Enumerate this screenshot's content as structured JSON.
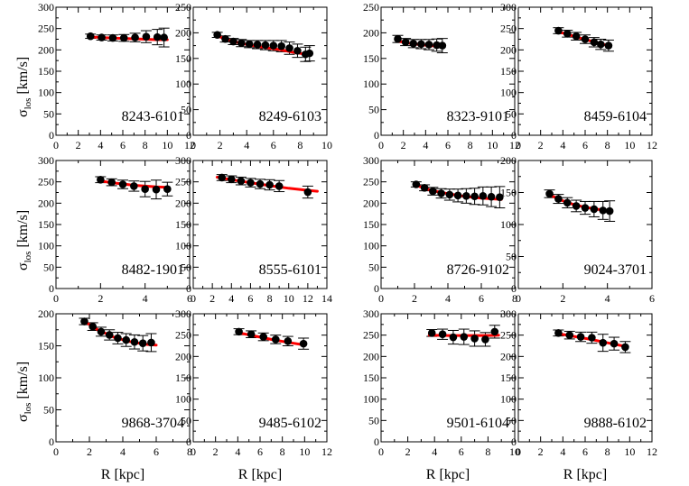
{
  "figure": {
    "ylabel_main": "σ",
    "ylabel_sub": "los",
    "ylabel_unit": " [km/s]",
    "xlabel": "R [kpc]",
    "point_color": "#000000",
    "model_color": "#ff0000",
    "frame_color": "#000000"
  },
  "chart_data": [
    {
      "type": "scatter",
      "id": "8243-6101",
      "xlim": [
        0,
        12
      ],
      "xticks": [
        0,
        2,
        4,
        6,
        8,
        10,
        12
      ],
      "ylim": [
        0,
        300
      ],
      "yticks": [
        0,
        50,
        100,
        150,
        200,
        250,
        300
      ],
      "points": [
        {
          "x": 3.1,
          "y": 232,
          "err": 5
        },
        {
          "x": 4.1,
          "y": 229,
          "err": 6
        },
        {
          "x": 5.1,
          "y": 228,
          "err": 7
        },
        {
          "x": 6.1,
          "y": 228,
          "err": 8
        },
        {
          "x": 7.1,
          "y": 229,
          "err": 10
        },
        {
          "x": 8.1,
          "y": 231,
          "err": 14
        },
        {
          "x": 9.1,
          "y": 230,
          "err": 18
        },
        {
          "x": 9.7,
          "y": 229,
          "err": 22
        }
      ],
      "model": [
        [
          3,
          231
        ],
        [
          4,
          229
        ],
        [
          5,
          228
        ],
        [
          6,
          227
        ],
        [
          7,
          226
        ],
        [
          8,
          225
        ],
        [
          9,
          224
        ],
        [
          10,
          224
        ]
      ]
    },
    {
      "type": "scatter",
      "id": "8249-6103",
      "xlim": [
        0,
        10
      ],
      "xticks": [
        0,
        2,
        4,
        6,
        8,
        10
      ],
      "ylim": [
        0,
        250
      ],
      "yticks": [
        0,
        50,
        100,
        150,
        200,
        250
      ],
      "points": [
        {
          "x": 1.8,
          "y": 196,
          "err": 5
        },
        {
          "x": 2.4,
          "y": 188,
          "err": 6
        },
        {
          "x": 3.0,
          "y": 183,
          "err": 6
        },
        {
          "x": 3.6,
          "y": 180,
          "err": 7
        },
        {
          "x": 4.2,
          "y": 178,
          "err": 7
        },
        {
          "x": 4.8,
          "y": 177,
          "err": 8
        },
        {
          "x": 5.4,
          "y": 176,
          "err": 9
        },
        {
          "x": 6.0,
          "y": 175,
          "err": 10
        },
        {
          "x": 6.6,
          "y": 174,
          "err": 11
        },
        {
          "x": 7.2,
          "y": 170,
          "err": 12
        },
        {
          "x": 7.8,
          "y": 165,
          "err": 13
        },
        {
          "x": 8.4,
          "y": 158,
          "err": 14
        },
        {
          "x": 8.7,
          "y": 160,
          "err": 15
        }
      ],
      "model": [
        [
          1.7,
          195
        ],
        [
          2.5,
          187
        ],
        [
          3.5,
          180
        ],
        [
          4.5,
          175
        ],
        [
          5.5,
          171
        ],
        [
          6.5,
          167
        ],
        [
          7.5,
          162
        ],
        [
          8.5,
          158
        ]
      ]
    },
    {
      "type": "scatter",
      "id": "8323-9101",
      "xlim": [
        0,
        12
      ],
      "xticks": [
        0,
        2,
        4,
        6,
        8,
        10,
        12
      ],
      "ylim": [
        0,
        250
      ],
      "yticks": [
        0,
        50,
        100,
        150,
        200,
        250
      ],
      "points": [
        {
          "x": 1.5,
          "y": 188,
          "err": 7
        },
        {
          "x": 2.2,
          "y": 182,
          "err": 7
        },
        {
          "x": 2.9,
          "y": 179,
          "err": 8
        },
        {
          "x": 3.6,
          "y": 178,
          "err": 9
        },
        {
          "x": 4.3,
          "y": 177,
          "err": 10
        },
        {
          "x": 5.0,
          "y": 176,
          "err": 12
        },
        {
          "x": 5.5,
          "y": 175,
          "err": 14
        }
      ],
      "model": [
        [
          1.5,
          184
        ],
        [
          2.5,
          180
        ],
        [
          3.5,
          177
        ],
        [
          4.5,
          175
        ],
        [
          5.5,
          173
        ]
      ]
    },
    {
      "type": "scatter",
      "id": "8459-6104",
      "xlim": [
        0,
        12
      ],
      "xticks": [
        0,
        2,
        4,
        6,
        8,
        10,
        12
      ],
      "ylim": [
        0,
        300
      ],
      "yticks": [
        0,
        50,
        100,
        150,
        200,
        250,
        300
      ],
      "points": [
        {
          "x": 3.6,
          "y": 245,
          "err": 7
        },
        {
          "x": 4.4,
          "y": 238,
          "err": 8
        },
        {
          "x": 5.2,
          "y": 232,
          "err": 9
        },
        {
          "x": 6.0,
          "y": 225,
          "err": 10
        },
        {
          "x": 6.8,
          "y": 218,
          "err": 11
        },
        {
          "x": 7.4,
          "y": 213,
          "err": 12
        },
        {
          "x": 8.1,
          "y": 210,
          "err": 13
        }
      ],
      "model": [
        [
          3.5,
          243
        ],
        [
          4.5,
          236
        ],
        [
          5.5,
          228
        ],
        [
          6.5,
          221
        ],
        [
          7.5,
          214
        ],
        [
          8.2,
          209
        ]
      ]
    },
    {
      "type": "scatter",
      "id": "8482-1901",
      "xlim": [
        0,
        6
      ],
      "xticks": [
        0,
        2,
        4,
        6
      ],
      "ylim": [
        0,
        300
      ],
      "yticks": [
        0,
        50,
        100,
        150,
        200,
        250,
        300
      ],
      "points": [
        {
          "x": 2.0,
          "y": 255,
          "err": 7
        },
        {
          "x": 2.5,
          "y": 249,
          "err": 8
        },
        {
          "x": 3.0,
          "y": 244,
          "err": 10
        },
        {
          "x": 3.5,
          "y": 240,
          "err": 12
        },
        {
          "x": 4.0,
          "y": 233,
          "err": 18
        },
        {
          "x": 4.5,
          "y": 232,
          "err": 22
        },
        {
          "x": 5.0,
          "y": 233,
          "err": 16
        }
      ],
      "model": [
        [
          2.0,
          252
        ],
        [
          2.5,
          248
        ],
        [
          3.0,
          245
        ],
        [
          3.5,
          242
        ],
        [
          4.0,
          240
        ],
        [
          4.5,
          238
        ],
        [
          5.0,
          237
        ]
      ]
    },
    {
      "type": "scatter",
      "id": "8555-6101",
      "xlim": [
        0,
        14
      ],
      "xticks": [
        0,
        2,
        4,
        6,
        8,
        10,
        12,
        14
      ],
      "ylim": [
        0,
        300
      ],
      "yticks": [
        0,
        50,
        100,
        150,
        200,
        250,
        300
      ],
      "points": [
        {
          "x": 3.0,
          "y": 260,
          "err": 7
        },
        {
          "x": 4.0,
          "y": 256,
          "err": 8
        },
        {
          "x": 5.0,
          "y": 252,
          "err": 9
        },
        {
          "x": 6.0,
          "y": 248,
          "err": 10
        },
        {
          "x": 7.0,
          "y": 245,
          "err": 11
        },
        {
          "x": 8.0,
          "y": 243,
          "err": 12
        },
        {
          "x": 9.0,
          "y": 240,
          "err": 13
        },
        {
          "x": 12.0,
          "y": 226,
          "err": 14
        }
      ],
      "model": [
        [
          2.5,
          261
        ],
        [
          4,
          255
        ],
        [
          6,
          248
        ],
        [
          8,
          241
        ],
        [
          10,
          235
        ],
        [
          12,
          230
        ],
        [
          13,
          228
        ]
      ]
    },
    {
      "type": "scatter",
      "id": "8726-9102",
      "xlim": [
        0,
        8
      ],
      "xticks": [
        0,
        2,
        4,
        6,
        8
      ],
      "ylim": [
        0,
        300
      ],
      "yticks": [
        0,
        50,
        100,
        150,
        200,
        250,
        300
      ],
      "points": [
        {
          "x": 2.1,
          "y": 244,
          "err": 6
        },
        {
          "x": 2.6,
          "y": 236,
          "err": 7
        },
        {
          "x": 3.1,
          "y": 228,
          "err": 9
        },
        {
          "x": 3.6,
          "y": 223,
          "err": 11
        },
        {
          "x": 4.1,
          "y": 220,
          "err": 13
        },
        {
          "x": 4.6,
          "y": 218,
          "err": 15
        },
        {
          "x": 5.1,
          "y": 217,
          "err": 17
        },
        {
          "x": 5.6,
          "y": 216,
          "err": 19
        },
        {
          "x": 6.1,
          "y": 217,
          "err": 21
        },
        {
          "x": 6.6,
          "y": 215,
          "err": 23
        },
        {
          "x": 7.1,
          "y": 214,
          "err": 25
        }
      ],
      "model": [
        [
          2.0,
          243
        ],
        [
          3.0,
          230
        ],
        [
          4.0,
          222
        ],
        [
          5.0,
          216
        ],
        [
          6.0,
          212
        ],
        [
          7.2,
          209
        ]
      ]
    },
    {
      "type": "scatter",
      "id": "9024-3701",
      "xlim": [
        0,
        6
      ],
      "xticks": [
        0,
        2,
        4,
        6
      ],
      "ylim": [
        0,
        200
      ],
      "yticks": [
        0,
        50,
        100,
        150,
        200
      ],
      "points": [
        {
          "x": 1.4,
          "y": 148,
          "err": 6
        },
        {
          "x": 1.8,
          "y": 140,
          "err": 7
        },
        {
          "x": 2.2,
          "y": 134,
          "err": 8
        },
        {
          "x": 2.6,
          "y": 129,
          "err": 9
        },
        {
          "x": 3.0,
          "y": 126,
          "err": 10
        },
        {
          "x": 3.4,
          "y": 124,
          "err": 12
        },
        {
          "x": 3.8,
          "y": 122,
          "err": 14
        },
        {
          "x": 4.1,
          "y": 121,
          "err": 16
        }
      ],
      "model": [
        [
          1.3,
          148
        ],
        [
          2.0,
          137
        ],
        [
          2.5,
          131
        ],
        [
          3.0,
          127
        ],
        [
          3.5,
          124
        ],
        [
          4.0,
          122
        ],
        [
          4.2,
          121
        ]
      ]
    },
    {
      "type": "scatter",
      "id": "9868-3704",
      "xlim": [
        0,
        8
      ],
      "xticks": [
        0,
        2,
        4,
        6,
        8
      ],
      "ylim": [
        0,
        200
      ],
      "yticks": [
        0,
        50,
        100,
        150,
        200
      ],
      "points": [
        {
          "x": 1.7,
          "y": 188,
          "err": 5
        },
        {
          "x": 2.2,
          "y": 180,
          "err": 6
        },
        {
          "x": 2.7,
          "y": 172,
          "err": 7
        },
        {
          "x": 3.2,
          "y": 167,
          "err": 8
        },
        {
          "x": 3.7,
          "y": 162,
          "err": 9
        },
        {
          "x": 4.2,
          "y": 159,
          "err": 10
        },
        {
          "x": 4.7,
          "y": 156,
          "err": 11
        },
        {
          "x": 5.2,
          "y": 154,
          "err": 12
        },
        {
          "x": 5.7,
          "y": 155,
          "err": 14
        }
      ],
      "model": [
        [
          1.6,
          190
        ],
        [
          2.5,
          175
        ],
        [
          3.5,
          163
        ],
        [
          4.5,
          156
        ],
        [
          5.5,
          152
        ],
        [
          6.0,
          151
        ]
      ]
    },
    {
      "type": "scatter",
      "id": "9485-6102",
      "xlim": [
        0,
        12
      ],
      "xticks": [
        0,
        2,
        4,
        6,
        8,
        10,
        12
      ],
      "ylim": [
        0,
        300
      ],
      "yticks": [
        0,
        50,
        100,
        150,
        200,
        250,
        300
      ],
      "points": [
        {
          "x": 4.1,
          "y": 258,
          "err": 7
        },
        {
          "x": 5.2,
          "y": 252,
          "err": 8
        },
        {
          "x": 6.3,
          "y": 246,
          "err": 9
        },
        {
          "x": 7.4,
          "y": 240,
          "err": 10
        },
        {
          "x": 8.5,
          "y": 236,
          "err": 11
        },
        {
          "x": 9.9,
          "y": 230,
          "err": 13
        }
      ],
      "model": [
        [
          4.0,
          256
        ],
        [
          5.5,
          248
        ],
        [
          7.0,
          240
        ],
        [
          8.5,
          233
        ],
        [
          10.0,
          227
        ]
      ]
    },
    {
      "type": "scatter",
      "id": "9501-6104",
      "xlim": [
        0,
        10
      ],
      "xticks": [
        0,
        2,
        4,
        6,
        8,
        10
      ],
      "ylim": [
        0,
        300
      ],
      "yticks": [
        0,
        50,
        100,
        150,
        200,
        250,
        300
      ],
      "points": [
        {
          "x": 3.8,
          "y": 255,
          "err": 8
        },
        {
          "x": 4.6,
          "y": 252,
          "err": 12
        },
        {
          "x": 5.4,
          "y": 245,
          "err": 16
        },
        {
          "x": 6.2,
          "y": 246,
          "err": 18
        },
        {
          "x": 7.0,
          "y": 242,
          "err": 18
        },
        {
          "x": 7.8,
          "y": 240,
          "err": 16
        },
        {
          "x": 8.5,
          "y": 258,
          "err": 15
        }
      ],
      "model": [
        [
          3.6,
          250
        ],
        [
          5.0,
          249
        ],
        [
          6.5,
          249
        ],
        [
          8.0,
          249
        ],
        [
          8.8,
          250
        ]
      ]
    },
    {
      "type": "scatter",
      "id": "9888-6102",
      "xlim": [
        0,
        12
      ],
      "xticks": [
        0,
        2,
        4,
        6,
        8,
        10,
        12
      ],
      "ylim": [
        0,
        300
      ],
      "yticks": [
        0,
        50,
        100,
        150,
        200,
        250,
        300
      ],
      "points": [
        {
          "x": 3.6,
          "y": 255,
          "err": 7
        },
        {
          "x": 4.6,
          "y": 250,
          "err": 9
        },
        {
          "x": 5.6,
          "y": 246,
          "err": 11
        },
        {
          "x": 6.6,
          "y": 244,
          "err": 13
        },
        {
          "x": 7.6,
          "y": 232,
          "err": 20
        },
        {
          "x": 8.6,
          "y": 230,
          "err": 15
        },
        {
          "x": 9.6,
          "y": 222,
          "err": 13
        }
      ],
      "model": [
        [
          3.5,
          254
        ],
        [
          5.0,
          247
        ],
        [
          6.5,
          240
        ],
        [
          8.0,
          232
        ],
        [
          9.7,
          223
        ]
      ]
    }
  ]
}
